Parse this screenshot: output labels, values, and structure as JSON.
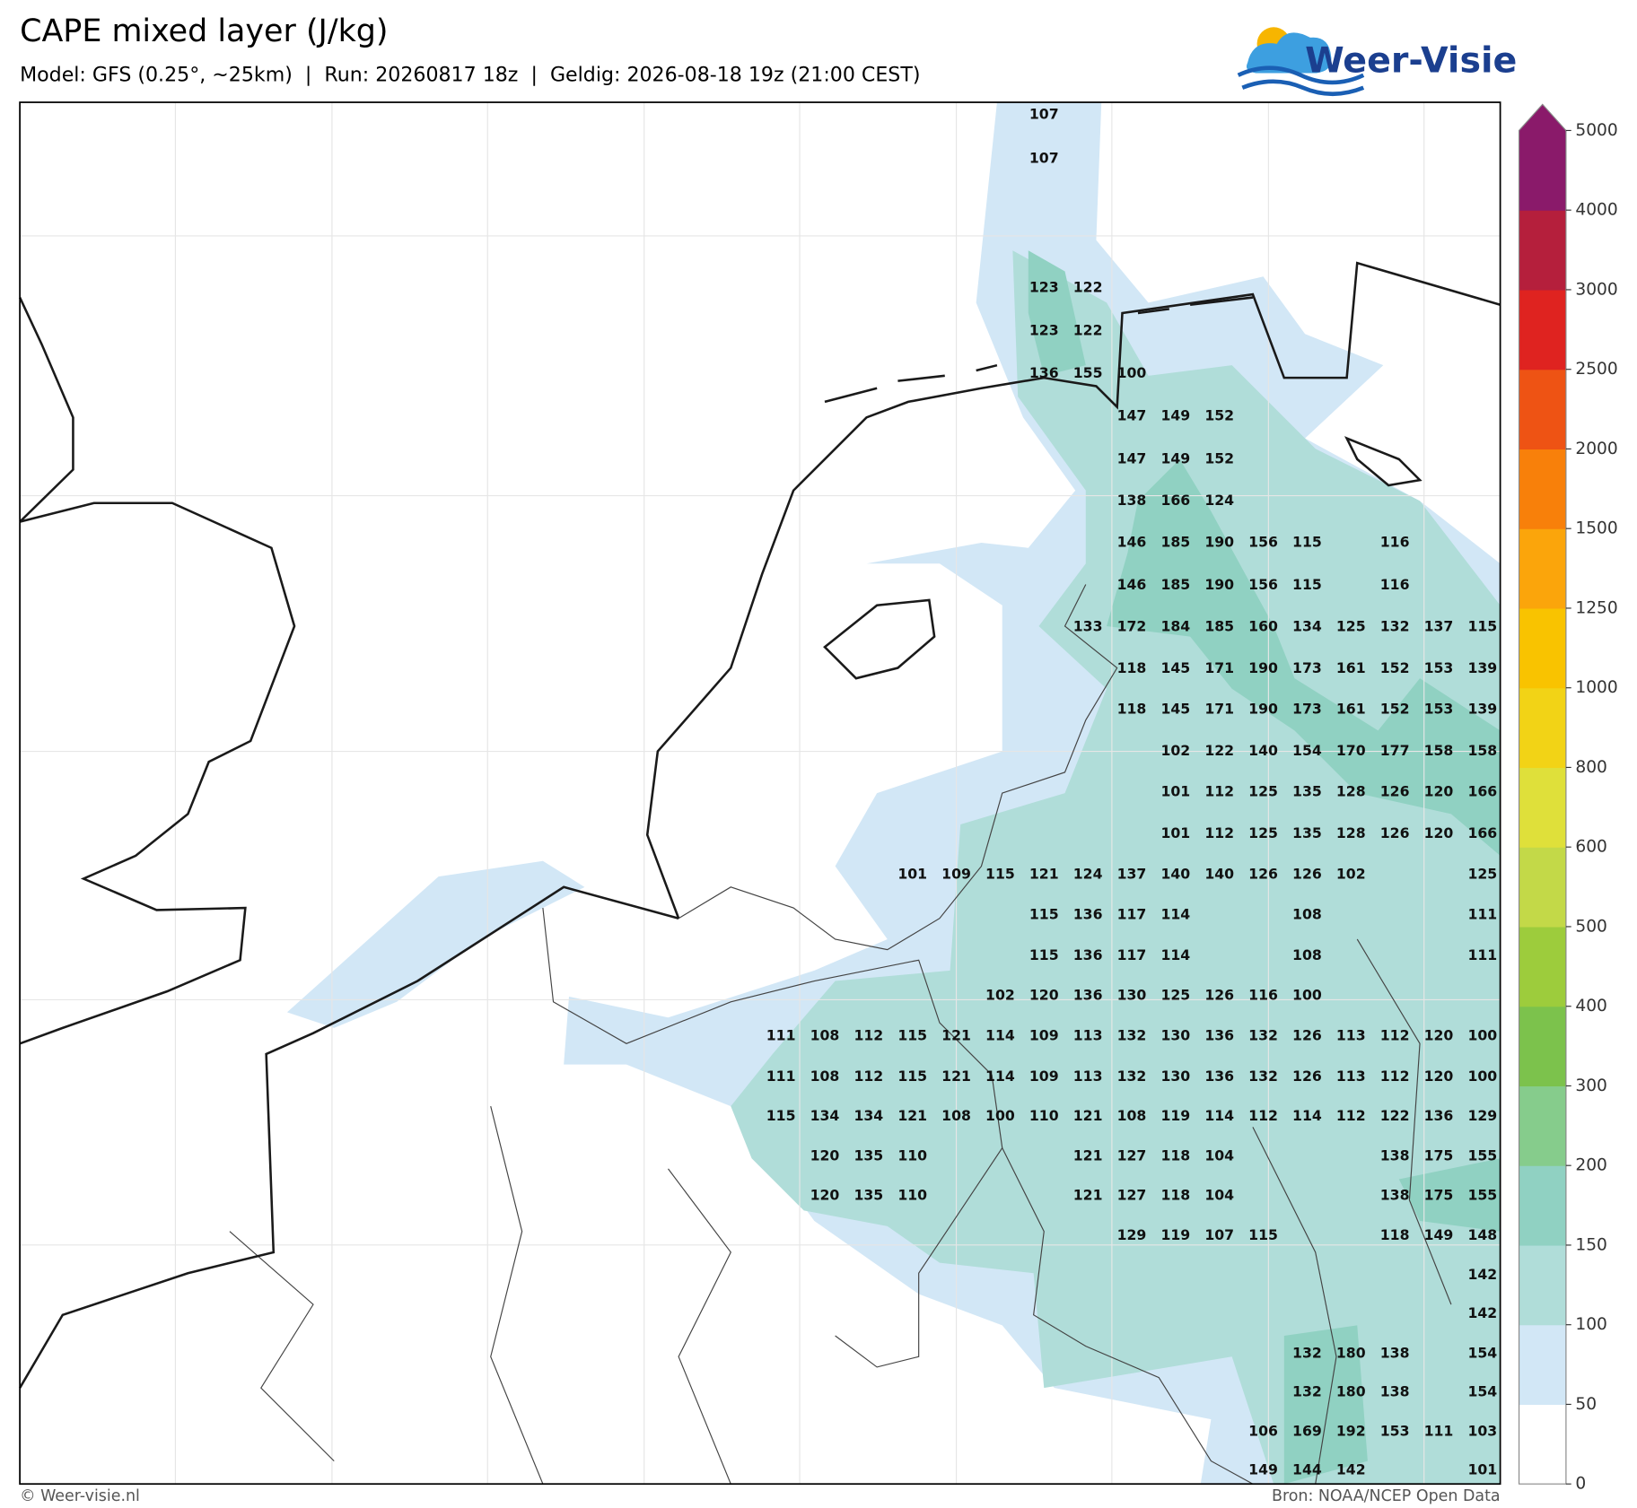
{
  "header": {
    "title": "CAPE mixed layer (J/kg)",
    "subtitle": "Model: GFS (0.25°, ~25km)  |  Run: 20260817 18z  |  Geldig: 2026-08-18 19z (21:00 CEST)"
  },
  "logo": {
    "text": "Weer-Visie"
  },
  "colorbar": {
    "ticks": [
      0,
      50,
      100,
      150,
      200,
      300,
      400,
      500,
      600,
      800,
      1000,
      1250,
      1500,
      2000,
      2500,
      3000,
      4000,
      5000
    ],
    "colors": [
      "#ffffff",
      "#d2e7f6",
      "#b0ddd9",
      "#90d1c2",
      "#86cc8c",
      "#7cc24c",
      "#9dcc3c",
      "#c3d948",
      "#dfe03a",
      "#f2d316",
      "#f9c300",
      "#fba50b",
      "#f8800a",
      "#ee5314",
      "#df2320",
      "#b51f3c",
      "#8a1a6a"
    ],
    "extend_color": "#8a1a6a"
  },
  "labels": {
    "rows": [
      [
        null,
        null,
        null,
        null,
        null,
        null,
        107,
        null,
        null,
        null,
        null,
        null,
        null,
        null,
        null,
        null,
        null
      ],
      [
        null,
        null,
        null,
        null,
        null,
        null,
        107,
        null,
        null,
        null,
        null,
        null,
        null,
        null,
        null,
        null,
        null
      ],
      [
        null,
        null,
        null,
        null,
        null,
        null,
        123,
        122,
        null,
        null,
        null,
        null,
        null,
        null,
        null,
        null,
        null
      ],
      [
        null,
        null,
        null,
        null,
        null,
        null,
        123,
        122,
        null,
        null,
        null,
        null,
        null,
        null,
        null,
        null,
        null
      ],
      [
        null,
        null,
        null,
        null,
        null,
        null,
        136,
        155,
        100,
        null,
        null,
        null,
        null,
        null,
        null,
        null,
        null
      ],
      [
        null,
        null,
        null,
        null,
        null,
        null,
        null,
        null,
        147,
        149,
        152,
        null,
        null,
        null,
        null,
        null,
        null
      ],
      [
        null,
        null,
        null,
        null,
        null,
        null,
        null,
        null,
        147,
        149,
        152,
        null,
        null,
        null,
        null,
        null,
        null
      ],
      [
        null,
        null,
        null,
        null,
        null,
        null,
        null,
        null,
        138,
        166,
        124,
        null,
        null,
        null,
        null,
        null,
        null
      ],
      [
        null,
        null,
        null,
        null,
        null,
        null,
        null,
        null,
        146,
        185,
        190,
        156,
        115,
        null,
        116,
        null,
        null
      ],
      [
        null,
        null,
        null,
        null,
        null,
        null,
        null,
        null,
        146,
        185,
        190,
        156,
        115,
        null,
        116,
        null,
        null
      ],
      [
        null,
        null,
        null,
        null,
        null,
        null,
        null,
        133,
        172,
        184,
        185,
        160,
        134,
        125,
        132,
        137,
        115
      ],
      [
        null,
        null,
        null,
        null,
        null,
        null,
        null,
        null,
        118,
        145,
        171,
        190,
        173,
        161,
        152,
        153,
        139
      ],
      [
        null,
        null,
        null,
        null,
        null,
        null,
        null,
        null,
        118,
        145,
        171,
        190,
        173,
        161,
        152,
        153,
        139
      ],
      [
        null,
        null,
        null,
        null,
        null,
        null,
        null,
        null,
        null,
        102,
        122,
        140,
        154,
        170,
        177,
        158,
        158
      ],
      [
        null,
        null,
        null,
        null,
        null,
        null,
        null,
        null,
        null,
        101,
        112,
        125,
        135,
        128,
        126,
        120,
        166
      ],
      [
        null,
        null,
        null,
        null,
        null,
        null,
        null,
        null,
        null,
        101,
        112,
        125,
        135,
        128,
        126,
        120,
        166
      ],
      [
        null,
        null,
        null,
        101,
        109,
        115,
        121,
        124,
        137,
        140,
        140,
        126,
        126,
        102,
        null,
        null,
        125
      ],
      [
        null,
        null,
        null,
        null,
        null,
        null,
        115,
        136,
        117,
        114,
        null,
        null,
        108,
        null,
        null,
        null,
        111
      ],
      [
        null,
        null,
        null,
        null,
        null,
        null,
        115,
        136,
        117,
        114,
        null,
        null,
        108,
        null,
        null,
        null,
        111
      ],
      [
        null,
        null,
        null,
        null,
        null,
        102,
        120,
        136,
        130,
        125,
        126,
        116,
        100,
        null,
        null,
        null,
        null
      ],
      [
        111,
        108,
        112,
        115,
        121,
        114,
        109,
        113,
        132,
        130,
        136,
        132,
        126,
        113,
        112,
        120,
        100
      ],
      [
        111,
        108,
        112,
        115,
        121,
        114,
        109,
        113,
        132,
        130,
        136,
        132,
        126,
        113,
        112,
        120,
        100
      ],
      [
        115,
        134,
        134,
        121,
        108,
        100,
        110,
        121,
        108,
        119,
        114,
        112,
        114,
        112,
        122,
        136,
        129
      ],
      [
        null,
        120,
        135,
        110,
        null,
        null,
        null,
        121,
        127,
        118,
        104,
        null,
        null,
        null,
        138,
        175,
        155
      ],
      [
        null,
        120,
        135,
        110,
        null,
        null,
        null,
        121,
        127,
        118,
        104,
        null,
        null,
        null,
        138,
        175,
        155
      ],
      [
        null,
        null,
        null,
        null,
        null,
        null,
        null,
        null,
        129,
        119,
        107,
        115,
        null,
        null,
        118,
        149,
        148
      ],
      [
        null,
        null,
        null,
        null,
        null,
        null,
        null,
        null,
        null,
        null,
        null,
        null,
        null,
        null,
        null,
        null,
        142
      ],
      [
        null,
        null,
        null,
        null,
        null,
        null,
        null,
        null,
        null,
        null,
        null,
        null,
        null,
        null,
        null,
        null,
        142
      ],
      [
        null,
        null,
        null,
        null,
        null,
        null,
        null,
        null,
        null,
        null,
        null,
        null,
        132,
        180,
        138,
        null,
        154
      ],
      [
        null,
        null,
        null,
        null,
        null,
        null,
        null,
        null,
        null,
        null,
        null,
        null,
        132,
        180,
        138,
        null,
        154
      ],
      [
        null,
        null,
        null,
        null,
        null,
        null,
        null,
        null,
        null,
        null,
        null,
        106,
        169,
        192,
        153,
        111,
        103
      ],
      [
        null,
        null,
        null,
        null,
        null,
        null,
        null,
        null,
        null,
        null,
        null,
        149,
        144,
        142,
        null,
        null,
        101
      ]
    ]
  },
  "footer": {
    "left": "© Weer-visie.nl",
    "right": "Bron: NOAA/NCEP Open Data"
  }
}
